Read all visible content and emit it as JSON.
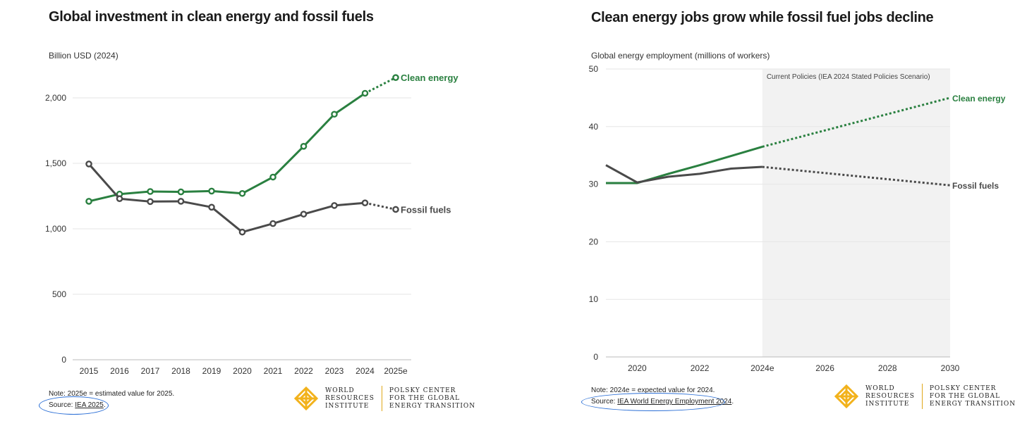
{
  "colors": {
    "clean": "#2a8040",
    "fossil": "#4a4a4a",
    "grid": "#e6e6e6",
    "shade": "#f2f2f2",
    "annotation": "#2b6fd6",
    "logo": "#f2b21c"
  },
  "left": {
    "title": "Global investment in clean energy and fossil fuels",
    "unit_label": "Billion USD (2024)",
    "note": "Note: 2025e = estimated value for 2025.",
    "source_prefix": "Source: ",
    "source_link": "IEA 2025",
    "source_suffix": "."
  },
  "right": {
    "title": "Clean energy jobs grow while fossil fuel jobs decline",
    "unit_label": "Global energy employment (millions of workers)",
    "shade_label": "Current Policies (IEA 2024 Stated Policies Scenario)",
    "note": "Note: 2024e = expected value for 2024.",
    "source_prefix": "Source: ",
    "source_link": "IEA World Energy Employment 2024",
    "source_suffix": "."
  },
  "logo": {
    "wri_lines": [
      "WORLD",
      "RESOURCES",
      "INSTITUTE"
    ],
    "polsky_lines": [
      "POLSKY CENTER",
      "FOR THE GLOBAL",
      "ENERGY TRANSITION"
    ]
  },
  "chart_data": [
    {
      "type": "line",
      "title": "Global investment in clean energy and fossil fuels",
      "ylabel": "Billion USD (2024)",
      "categories": [
        "2015",
        "2016",
        "2017",
        "2018",
        "2019",
        "2020",
        "2021",
        "2022",
        "2023",
        "2024",
        "2025e"
      ],
      "ylim": [
        0,
        2300
      ],
      "yticks": [
        0,
        500,
        1000,
        1500,
        2000
      ],
      "ytick_labels": [
        "0",
        "500",
        "1,000",
        "1,500",
        "2,000"
      ],
      "grid": true,
      "series": [
        {
          "name": "Clean energy",
          "color": "#2a8040",
          "estimated_from_index": 9,
          "values": [
            1210,
            1265,
            1285,
            1282,
            1288,
            1270,
            1395,
            1630,
            1875,
            2035,
            2155
          ]
        },
        {
          "name": "Fossil fuels",
          "color": "#4a4a4a",
          "estimated_from_index": 9,
          "values": [
            1495,
            1230,
            1208,
            1210,
            1165,
            975,
            1040,
            1112,
            1178,
            1198,
            1148
          ]
        }
      ]
    },
    {
      "type": "line",
      "title": "Clean energy jobs grow while fossil fuel jobs decline",
      "ylabel": "Global energy employment (millions of workers)",
      "xlim": [
        2019,
        2030
      ],
      "xticks": [
        2020,
        2022,
        2024,
        2026,
        2028,
        2030
      ],
      "xtick_labels": [
        "2020",
        "2022",
        "2024e",
        "2026",
        "2028",
        "2030"
      ],
      "ylim": [
        0,
        50
      ],
      "yticks": [
        0,
        10,
        20,
        30,
        40,
        50
      ],
      "ytick_labels": [
        "0",
        "10",
        "20",
        "30",
        "40",
        "50"
      ],
      "grid": true,
      "shaded_region": {
        "from": 2024,
        "to": 2030,
        "label": "Current Policies (IEA 2024 Stated Policies Scenario)"
      },
      "series": [
        {
          "name": "Clean energy",
          "color": "#2a8040",
          "x": [
            2019,
            2020,
            2021,
            2022,
            2023,
            2024,
            2030
          ],
          "values": [
            30.2,
            30.2,
            31.8,
            33.3,
            34.9,
            36.5,
            45.0
          ],
          "projection_from_x": 2024
        },
        {
          "name": "Fossil fuels",
          "color": "#4a4a4a",
          "x": [
            2019,
            2020,
            2021,
            2022,
            2023,
            2024,
            2030
          ],
          "values": [
            33.3,
            30.3,
            31.3,
            31.8,
            32.7,
            33.0,
            29.8
          ],
          "projection_from_x": 2024
        }
      ]
    }
  ]
}
